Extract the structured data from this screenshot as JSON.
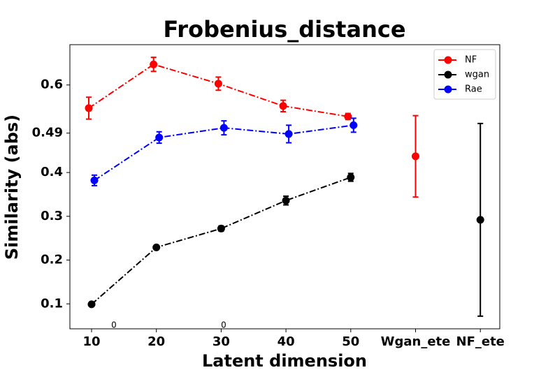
{
  "chart_data": {
    "type": "errorbar_line",
    "title": "Frobenius_distance",
    "x_label": "Latent dimension",
    "y_label": "Similarity (abs)",
    "categories": [
      "10",
      "20",
      "30",
      "40",
      "50",
      "Wgan_ete",
      "NF_ete"
    ],
    "ylim": [
      0.043,
      0.692
    ],
    "yticks": [
      0.1,
      0.2,
      0.3,
      0.4,
      0.49,
      0.6
    ],
    "legend": "upper right",
    "annotations": [
      "0",
      "0"
    ],
    "series": [
      {
        "name": "NF",
        "color": "#ff0000",
        "values": [
          0.547,
          0.647,
          0.603,
          0.552,
          0.528,
          null,
          null
        ],
        "errors": [
          0.025,
          0.016,
          0.015,
          0.013,
          0.007,
          null,
          null
        ]
      },
      {
        "name": "wgan",
        "color": "#000000",
        "values": [
          0.099,
          0.229,
          0.272,
          0.336,
          0.389,
          null,
          null
        ],
        "errors": [
          0.003,
          0.003,
          0.006,
          0.01,
          0.009,
          null,
          null
        ]
      },
      {
        "name": "Rae",
        "color": "#0000ff",
        "values": [
          0.382,
          0.48,
          0.502,
          0.488,
          0.508,
          null,
          null
        ],
        "errors": [
          0.012,
          0.013,
          0.016,
          0.02,
          0.016,
          null,
          null
        ]
      },
      {
        "color": "#ff0000",
        "values": [
          null,
          null,
          null,
          null,
          null,
          0.437,
          null
        ],
        "errors": [
          null,
          null,
          null,
          null,
          null,
          0.093,
          null
        ]
      },
      {
        "color": "#000000",
        "values": [
          null,
          null,
          null,
          null,
          null,
          null,
          0.292
        ],
        "errors": [
          null,
          null,
          null,
          null,
          null,
          null,
          0.22
        ]
      }
    ]
  }
}
